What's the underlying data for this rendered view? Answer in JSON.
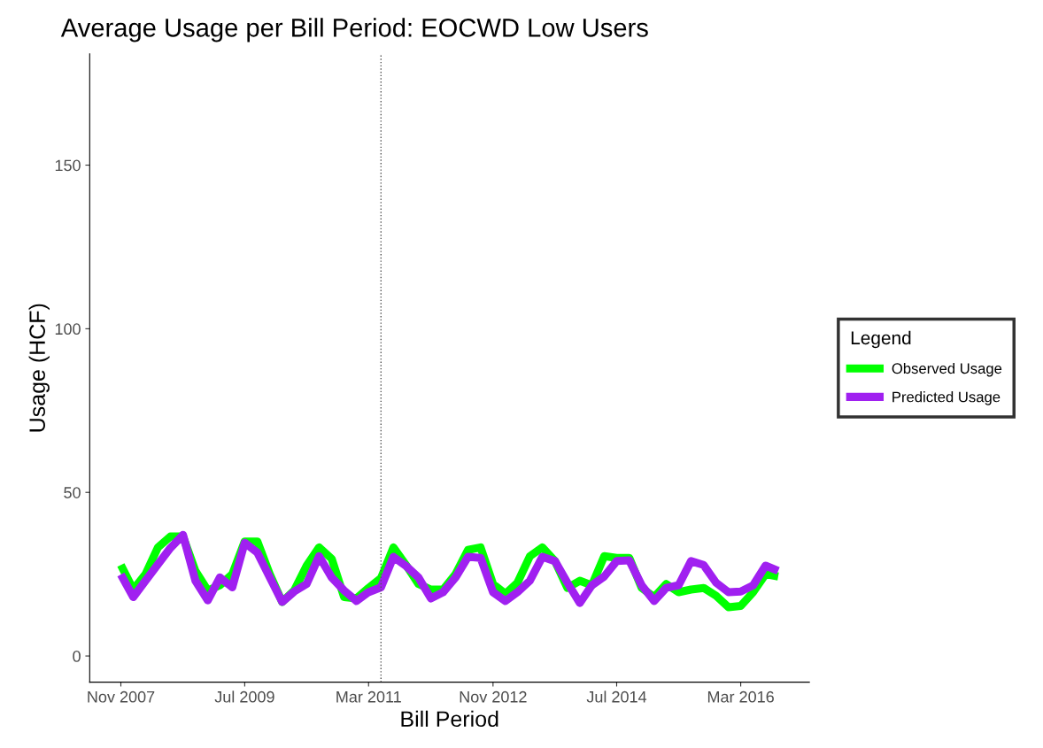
{
  "chart_data": {
    "type": "line",
    "title": "Average Usage per Bill Period: EOCWD Low Users",
    "xlabel": "Bill Period",
    "ylabel": "Usage (HCF)",
    "legend_title": "Legend",
    "legend": "right",
    "grid": false,
    "marker": "none",
    "line_style": "solid",
    "x": [
      "2007-11",
      "2008-01",
      "2008-03",
      "2008-05",
      "2008-07",
      "2008-09",
      "2008-11",
      "2009-01",
      "2009-03",
      "2009-05",
      "2009-07",
      "2009-09",
      "2009-11",
      "2010-01",
      "2010-03",
      "2010-05",
      "2010-07",
      "2010-09",
      "2010-11",
      "2011-01",
      "2011-03",
      "2011-05",
      "2011-07",
      "2011-09",
      "2011-11",
      "2012-01",
      "2012-03",
      "2012-05",
      "2012-07",
      "2012-09",
      "2012-11",
      "2013-01",
      "2013-03",
      "2013-05",
      "2013-07",
      "2013-09",
      "2013-11",
      "2014-01",
      "2014-03",
      "2014-05",
      "2014-07",
      "2014-09",
      "2014-11",
      "2015-01",
      "2015-03",
      "2015-05",
      "2015-07",
      "2015-09",
      "2015-11",
      "2016-01",
      "2016-03",
      "2016-05",
      "2016-07",
      "2016-09"
    ],
    "series": [
      {
        "name": "Observed Usage",
        "color": "#00ff00",
        "values": [
          27.8,
          20.3,
          25,
          33.2,
          36.5,
          36.5,
          26,
          20,
          21.6,
          25,
          35,
          35,
          25,
          16.5,
          20,
          27.6,
          33.2,
          29.7,
          18,
          17.6,
          20.8,
          23.8,
          33.2,
          27.8,
          22,
          20.3,
          20.3,
          25,
          32.4,
          33.2,
          22,
          19,
          22.4,
          30.5,
          33.2,
          29,
          20.8,
          23,
          21.6,
          30.5,
          30,
          30,
          20.8,
          18,
          22,
          19.5,
          20.3,
          20.8,
          18.4,
          14.9,
          15.3,
          19.5,
          25,
          24.3
        ]
      },
      {
        "name": "Predicted Usage",
        "color": "#a020f0",
        "values": [
          24.9,
          18,
          23,
          28,
          33,
          37,
          23,
          17,
          24,
          21,
          34.6,
          31.6,
          24,
          16.5,
          19.7,
          22,
          30.5,
          24,
          20,
          16.8,
          19.5,
          21,
          30.3,
          27.5,
          24,
          17.6,
          19.5,
          24,
          30.3,
          30,
          19.5,
          16.8,
          19.5,
          23,
          30.3,
          29,
          22.4,
          16.2,
          21.6,
          24.3,
          29,
          29.2,
          21.6,
          16.8,
          20.8,
          21.6,
          29,
          27.8,
          22.4,
          19.5,
          19.7,
          21.6,
          27.6,
          26
        ]
      }
    ],
    "xlim": [
      "2007-06",
      "2017-02"
    ],
    "xticks": [
      {
        "value": "2007-11",
        "label": "Nov 2007"
      },
      {
        "value": "2009-07",
        "label": "Jul 2009"
      },
      {
        "value": "2011-03",
        "label": "Mar 2011"
      },
      {
        "value": "2012-11",
        "label": "Nov 2012"
      },
      {
        "value": "2014-07",
        "label": "Jul 2014"
      },
      {
        "value": "2016-03",
        "label": "Mar 2016"
      }
    ],
    "ylim": [
      -8,
      184
    ],
    "yticks": [
      0,
      50,
      100,
      150
    ],
    "ref_lines": [
      {
        "axis": "x",
        "value": "2011-05",
        "label": null,
        "color": "#555555",
        "line_style": "dotted"
      }
    ]
  }
}
